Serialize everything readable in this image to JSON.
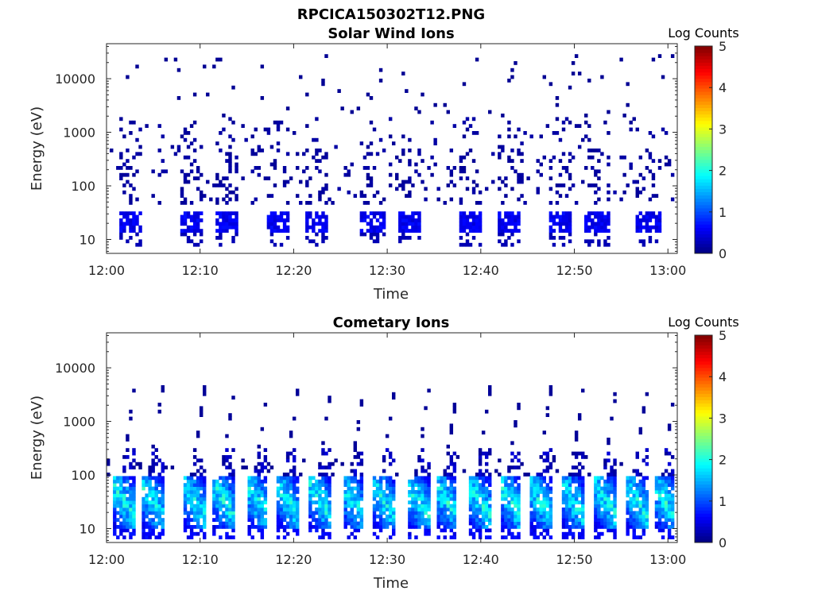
{
  "figure": {
    "title": "RPCICA150302T12.PNG"
  },
  "chart_data": [
    {
      "type": "heatmap",
      "title": "Solar Wind Ions",
      "xlabel": "Time",
      "ylabel": "Energy (eV)",
      "x_ticks": [
        "12:00",
        "12:10",
        "12:20",
        "12:30",
        "12:40",
        "12:50",
        "13:00"
      ],
      "y_ticks": [
        "10",
        "100",
        "1000",
        "10000"
      ],
      "y_scale": "log",
      "ylim": [
        5.5,
        45000
      ],
      "xlim": [
        "12:00",
        "13:01"
      ],
      "colorbar": {
        "label": "Log Counts",
        "ticks": [
          "0",
          "1",
          "2",
          "3",
          "4",
          "5"
        ],
        "range": [
          0,
          5
        ],
        "colormap": "jet"
      },
      "pattern": {
        "sweeps": [
          1.5,
          8.2,
          12.0,
          17.5,
          21.5,
          27.5,
          31.5,
          38.0,
          42.0,
          47.5,
          51.5,
          57.0
        ],
        "low_band_ev": [
          14,
          32
        ],
        "low_band_log_counts": 0.5,
        "scatter_ev": [
          45,
          2000
        ],
        "scatter_log_counts": 0.1,
        "sparse_high_ev": [
          2000,
          30000
        ]
      }
    },
    {
      "type": "heatmap",
      "title": "Cometary Ions",
      "xlabel": "Time",
      "ylabel": "Energy (eV)",
      "x_ticks": [
        "12:00",
        "12:10",
        "12:20",
        "12:30",
        "12:40",
        "12:50",
        "13:00"
      ],
      "y_ticks": [
        "10",
        "100",
        "1000",
        "10000"
      ],
      "y_scale": "log",
      "ylim": [
        5.5,
        45000
      ],
      "xlim": [
        "12:00",
        "13:01"
      ],
      "colorbar": {
        "label": "Log Counts",
        "ticks": [
          "0",
          "1",
          "2",
          "3",
          "4",
          "5"
        ],
        "range": [
          0,
          5
        ],
        "colormap": "jet"
      },
      "pattern": {
        "sweeps": [
          1.0,
          4.0,
          8.5,
          11.7,
          15.3,
          18.5,
          22.0,
          25.5,
          28.8,
          32.5,
          35.5,
          39.0,
          42.3,
          45.5,
          49.0,
          52.5,
          55.8,
          58.8
        ],
        "dense_band_ev": [
          10,
          90
        ],
        "dense_band_peak_log_counts": 2.1,
        "rising_tail_max_ev": 5000
      }
    }
  ]
}
